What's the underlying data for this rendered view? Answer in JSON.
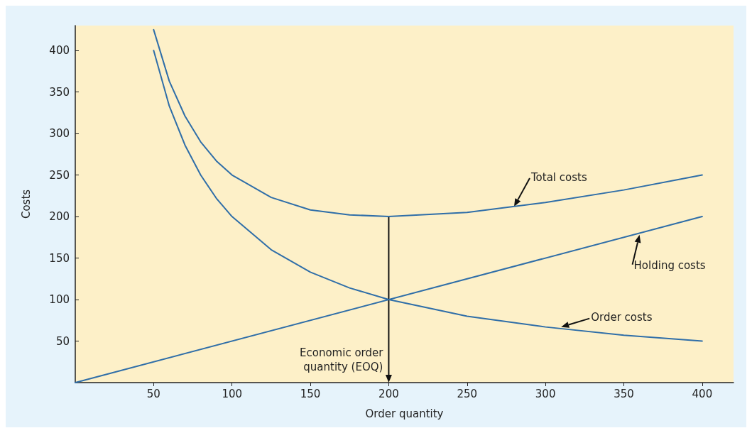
{
  "chart_data": {
    "type": "line",
    "xlabel": "Order quantity",
    "ylabel": "Costs",
    "xlim": [
      0,
      420
    ],
    "ylim": [
      0,
      430
    ],
    "xticks": [
      50,
      100,
      150,
      200,
      250,
      300,
      350,
      400
    ],
    "yticks": [
      50,
      100,
      150,
      200,
      250,
      300,
      350,
      400
    ],
    "grid": false,
    "marker": "none",
    "line_style": "solid",
    "series": [
      {
        "color": "#2f6ea8",
        "x": [
          50,
          60,
          70,
          80,
          90,
          100,
          125,
          150,
          175,
          200,
          250,
          300,
          350,
          400
        ],
        "values": [
          425,
          363,
          321,
          290,
          267,
          250,
          223,
          208,
          202,
          200,
          205,
          217,
          232,
          250
        ]
      },
      {
        "color": "#2f6ea8",
        "x": [
          50,
          60,
          70,
          80,
          90,
          100,
          125,
          150,
          175,
          200,
          250,
          300,
          350,
          400
        ],
        "values": [
          400,
          333,
          286,
          250,
          222,
          200,
          160,
          133,
          114,
          100,
          80,
          67,
          57,
          50
        ]
      },
      {
        "color": "#2f6ea8",
        "x": [
          0,
          400
        ],
        "values": [
          0,
          200
        ]
      }
    ],
    "annotations": [
      {
        "text": "Total costs",
        "x": 280,
        "y": 212
      },
      {
        "text": "Holding costs",
        "x": 360,
        "y": 178
      },
      {
        "text": "Order costs",
        "x": 310,
        "y": 67
      },
      {
        "text": "Economic order\nquantity (EOQ)",
        "x": 200,
        "y": 200
      }
    ]
  }
}
